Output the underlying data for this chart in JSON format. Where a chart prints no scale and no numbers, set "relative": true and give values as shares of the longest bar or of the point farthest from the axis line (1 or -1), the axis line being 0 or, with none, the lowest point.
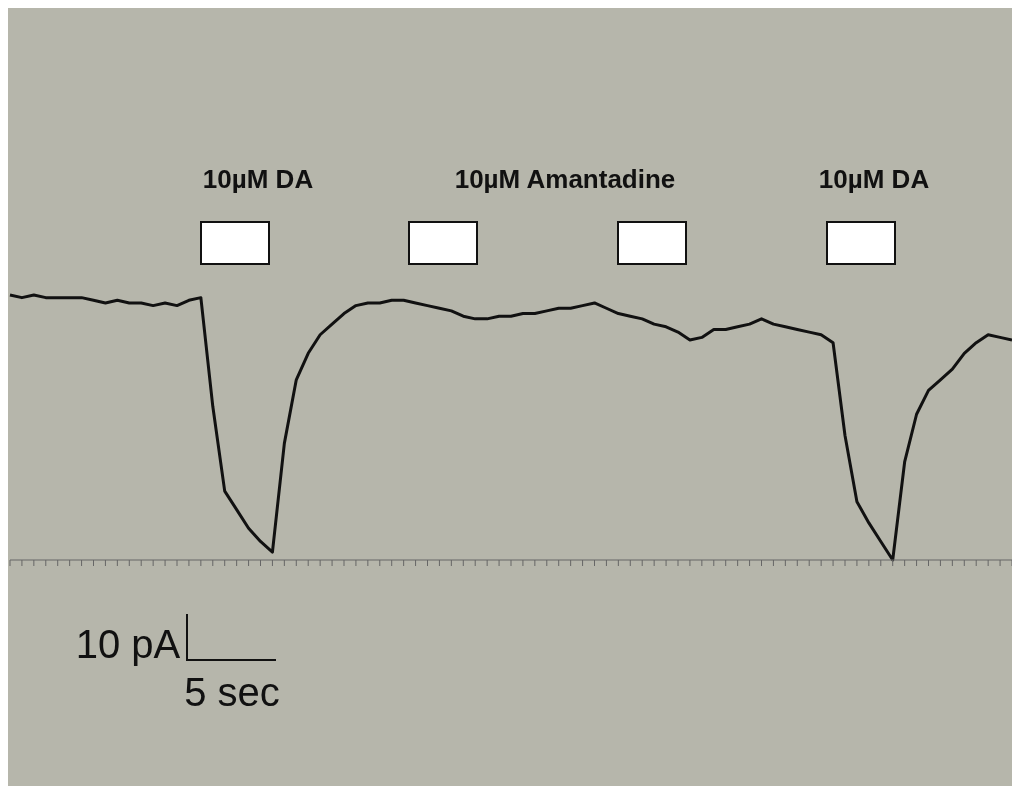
{
  "chart_data": {
    "type": "line",
    "relative": true,
    "color": "#111111",
    "marker": "none",
    "legend": false,
    "grid": false,
    "annotations": [
      "10µM DA",
      "10µM Amantadine",
      "10µM DA",
      "10 pA",
      "5 sec"
    ],
    "categories": [
      null,
      null,
      null,
      null,
      null,
      null,
      null,
      null,
      null,
      null,
      null,
      null,
      null,
      null,
      null,
      null,
      null,
      null,
      null,
      null,
      null,
      null,
      null,
      null,
      null,
      null,
      null,
      null,
      null,
      null,
      null,
      null,
      null,
      null,
      null,
      null,
      null,
      null,
      null,
      null,
      null,
      null,
      null,
      null,
      null,
      null,
      null,
      null,
      null,
      null,
      null,
      null,
      null,
      null,
      null,
      null,
      null,
      null,
      null,
      null,
      null,
      null,
      null,
      null,
      null,
      null,
      null,
      null,
      null,
      null,
      null,
      null,
      null,
      null,
      null,
      null,
      null,
      null,
      null,
      null,
      null,
      null,
      null,
      null,
      null
    ],
    "values": [
      1.0,
      0.99,
      1.0,
      0.99,
      0.99,
      0.99,
      0.99,
      0.98,
      0.97,
      0.98,
      0.97,
      0.97,
      0.96,
      0.97,
      0.96,
      0.98,
      0.99,
      0.58,
      0.26,
      0.19,
      0.12,
      0.07,
      0.03,
      0.44,
      0.68,
      0.78,
      0.85,
      0.89,
      0.93,
      0.96,
      0.97,
      0.97,
      0.98,
      0.98,
      0.97,
      0.96,
      0.95,
      0.94,
      0.92,
      0.91,
      0.91,
      0.92,
      0.92,
      0.93,
      0.93,
      0.94,
      0.95,
      0.95,
      0.96,
      0.97,
      0.95,
      0.93,
      0.92,
      0.91,
      0.89,
      0.88,
      0.86,
      0.83,
      0.84,
      0.87,
      0.87,
      0.88,
      0.89,
      0.91,
      0.89,
      0.88,
      0.87,
      0.86,
      0.85,
      0.82,
      0.47,
      0.22,
      0.14,
      0.07,
      0.0,
      0.37,
      0.55,
      0.64,
      0.68,
      0.72,
      0.78,
      0.82,
      0.85,
      0.84,
      0.83
    ]
  }
}
